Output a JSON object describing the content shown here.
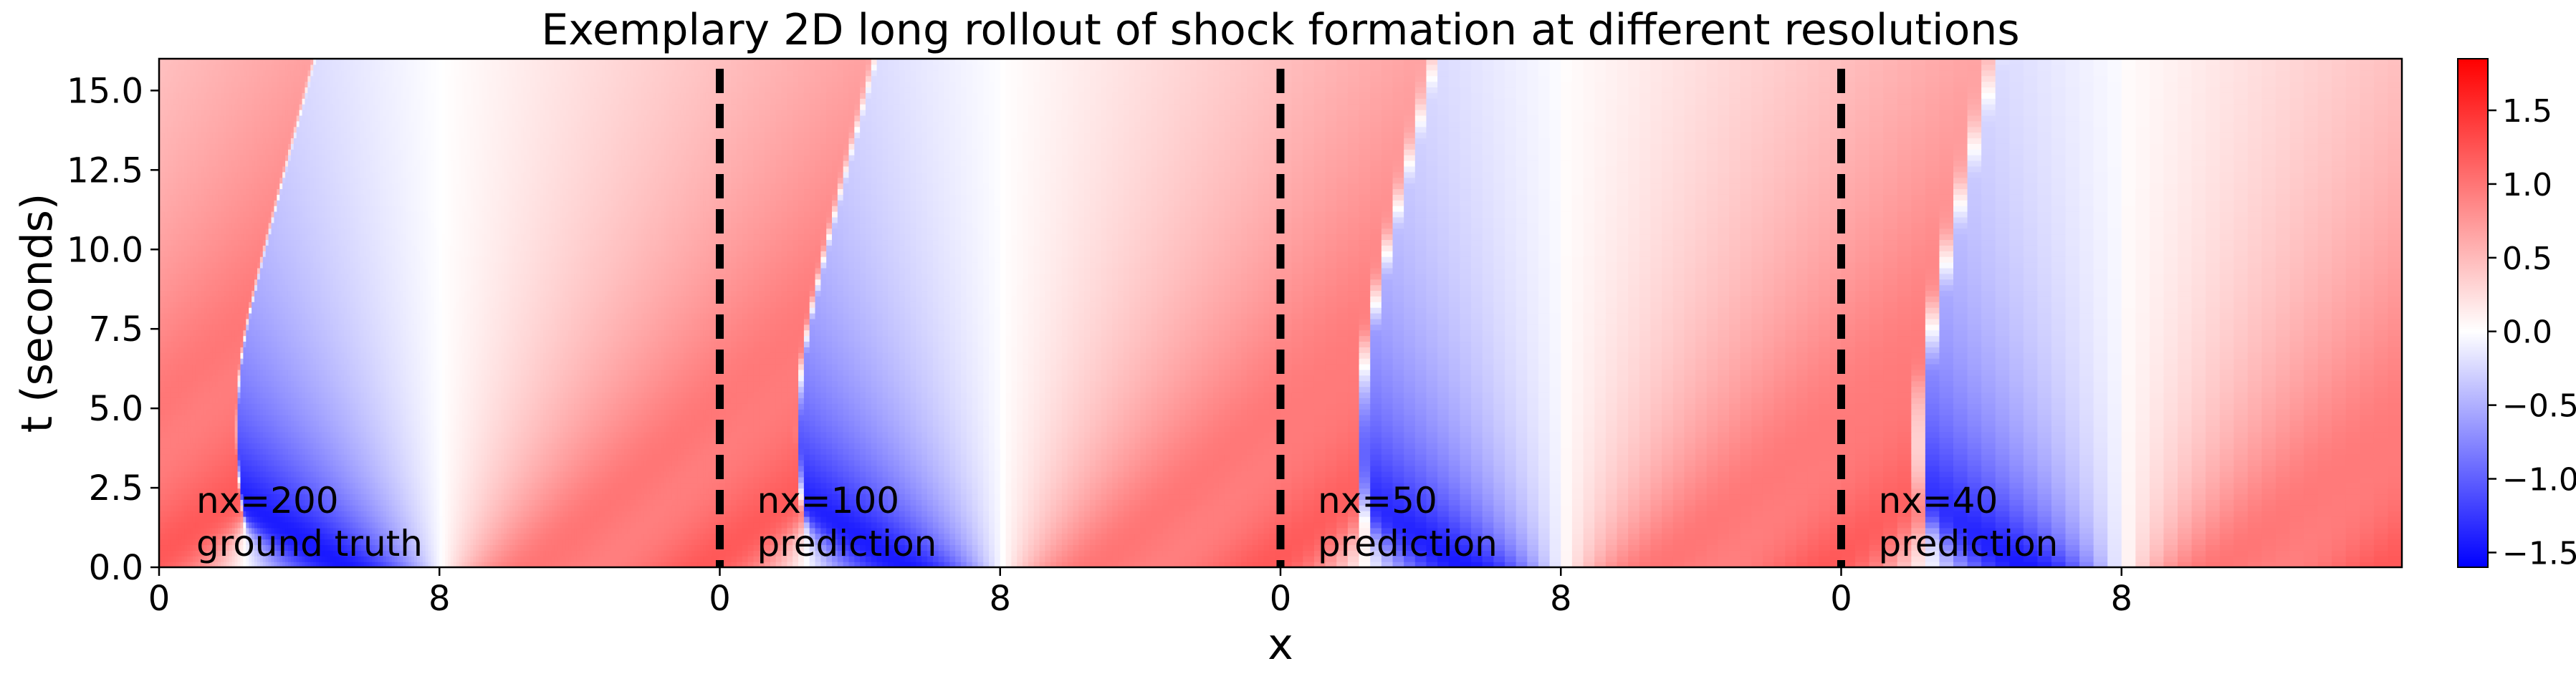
{
  "chart_data": {
    "type": "heatmap",
    "title": "Exemplary 2D long rollout of shock formation at different resolutions",
    "xlabel": "x",
    "ylabel": "t (seconds)",
    "x_ticks": [
      "0",
      "8",
      "0",
      "8",
      "0",
      "8",
      "0",
      "8"
    ],
    "y_ticks": [
      "0.0",
      "2.5",
      "5.0",
      "7.5",
      "10.0",
      "12.5",
      "15.0"
    ],
    "ylim": [
      0,
      16
    ],
    "x_domain_per_panel": [
      0,
      16
    ],
    "colormap": "bwr",
    "colorbar": {
      "range": [
        -1.6,
        1.85
      ],
      "ticks": [
        "1.5",
        "1.0",
        "0.5",
        "0.0",
        "−0.5",
        "−1.0",
        "−1.5"
      ],
      "tick_values": [
        1.5,
        1.0,
        0.5,
        0.0,
        -0.5,
        -1.0,
        -1.5
      ],
      "colors": {
        "low": "#0000ff",
        "mid": "#ffffff",
        "high": "#ff0000"
      }
    },
    "panels": [
      {
        "nx": 200,
        "line1": "nx=200",
        "line2": "ground truth"
      },
      {
        "nx": 100,
        "line1": "nx=100",
        "line2": "prediction"
      },
      {
        "nx": 50,
        "line1": "nx=50",
        "line2": "prediction"
      },
      {
        "nx": 40,
        "line1": "nx=40",
        "line2": "prediction"
      }
    ],
    "grid": false,
    "legend": "none"
  }
}
